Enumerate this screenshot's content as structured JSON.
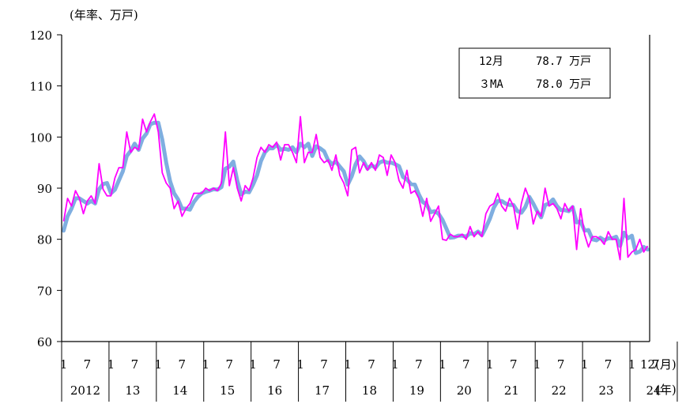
{
  "chart_data": {
    "type": "line",
    "ylabel_unit": "(年率、万戸)",
    "ylim": [
      60,
      120
    ],
    "yticks": [
      "60",
      "70",
      "80",
      "90",
      "100",
      "110",
      "120"
    ],
    "month_ticks": [
      "1",
      "7",
      "1",
      "7",
      "1",
      "7",
      "1",
      "7",
      "1",
      "7",
      "1",
      "7",
      "1",
      "7",
      "1",
      "7",
      "1",
      "7",
      "1",
      "7",
      "1",
      "7",
      "1",
      "7",
      "1",
      "7",
      "12"
    ],
    "year_labels": [
      "2012",
      "13",
      "14",
      "15",
      "16",
      "17",
      "18",
      "19",
      "20",
      "21",
      "22",
      "23",
      "24"
    ],
    "x_unit_month": "(月)",
    "x_unit_year": "(年)",
    "legend": {
      "row1_label": "12月",
      "row1_value": "78.7 万戸",
      "row2_label": "３MA",
      "row2_value": "78.0 万戸"
    },
    "colors": {
      "monthly": "#FF00FF",
      "ma3": "#7FAEE0",
      "axis": "#000000"
    },
    "series": [
      {
        "name": "12月",
        "values": [
          83.5,
          88.0,
          86.5,
          89.5,
          88.0,
          85.0,
          87.5,
          88.5,
          87.0,
          94.8,
          89.8,
          88.5,
          88.5,
          92.0,
          94.0,
          94.0,
          101.0,
          97.0,
          98.0,
          97.5,
          103.5,
          101.0,
          103.0,
          104.5,
          101.0,
          93.0,
          91.0,
          90.0,
          86.0,
          87.5,
          84.5,
          86.0,
          87.0,
          89.0,
          89.0,
          89.0,
          90.0,
          89.5,
          90.0,
          89.5,
          91.0,
          101.0,
          90.5,
          94.0,
          90.0,
          87.5,
          90.5,
          89.5,
          92.0,
          96.0,
          98.0,
          97.0,
          98.5,
          98.0,
          99.0,
          95.5,
          98.5,
          98.5,
          97.0,
          95.0,
          104.0,
          95.0,
          97.0,
          97.0,
          100.5,
          96.0,
          95.0,
          95.5,
          93.5,
          96.5,
          92.5,
          91.0,
          88.5,
          97.5,
          98.0,
          93.0,
          95.0,
          93.5,
          95.0,
          93.5,
          96.5,
          96.0,
          92.5,
          96.5,
          95.0,
          91.5,
          90.0,
          93.5,
          89.0,
          89.5,
          88.0,
          84.5,
          88.0,
          83.5,
          85.0,
          86.5,
          80.0,
          79.8,
          81.0,
          80.5,
          80.5,
          81.0,
          80.0,
          82.5,
          80.5,
          81.5,
          80.5,
          85.0,
          86.5,
          87.0,
          89.0,
          86.5,
          85.5,
          88.0,
          86.5,
          82.0,
          87.0,
          90.0,
          88.0,
          83.0,
          85.5,
          84.5,
          90.0,
          86.5,
          87.0,
          86.0,
          84.0,
          87.0,
          85.5,
          86.5,
          78.0,
          86.0,
          81.0,
          78.5,
          80.5,
          80.5,
          80.0,
          79.0,
          81.5,
          80.0,
          80.0,
          76.0,
          88.0,
          76.5,
          77.5,
          78.0,
          80.0,
          77.5,
          78.7
        ]
      },
      {
        "name": "３MA",
        "values": [
          81.7,
          84.5,
          86.0,
          88.0,
          88.0,
          87.5,
          87.0,
          87.5,
          87.0,
          89.8,
          90.8,
          91.0,
          89.0,
          89.7,
          91.5,
          93.3,
          96.3,
          97.3,
          98.7,
          97.5,
          99.7,
          100.7,
          102.5,
          102.8,
          102.8,
          99.5,
          95.0,
          91.3,
          89.0,
          87.8,
          86.0,
          86.0,
          85.8,
          87.3,
          88.3,
          89.0,
          89.3,
          89.5,
          89.8,
          89.7,
          90.2,
          93.8,
          94.2,
          95.2,
          91.5,
          88.8,
          89.3,
          89.2,
          90.7,
          92.5,
          95.3,
          97.0,
          97.8,
          97.8,
          98.5,
          97.5,
          97.7,
          97.5,
          98.0,
          97.0,
          98.7,
          98.0,
          98.7,
          96.3,
          98.2,
          97.8,
          97.2,
          95.5,
          94.7,
          95.2,
          94.2,
          93.3,
          90.7,
          92.3,
          94.7,
          96.2,
          95.3,
          93.8,
          94.5,
          94.0,
          95.0,
          95.3,
          95.0,
          95.0,
          94.7,
          94.3,
          92.2,
          91.7,
          90.8,
          90.7,
          88.8,
          87.3,
          86.8,
          85.3,
          85.5,
          85.0,
          83.8,
          82.1,
          80.3,
          80.4,
          80.7,
          80.7,
          80.5,
          81.2,
          81.0,
          81.5,
          80.8,
          82.3,
          84.0,
          86.2,
          87.5,
          87.5,
          87.0,
          86.7,
          86.7,
          85.5,
          85.2,
          86.3,
          88.3,
          87.0,
          85.5,
          84.3,
          86.7,
          87.0,
          87.8,
          86.5,
          85.7,
          85.7,
          85.5,
          86.3,
          83.3,
          83.5,
          81.7,
          81.8,
          80.0,
          79.8,
          80.3,
          79.8,
          80.2,
          80.2,
          80.5,
          78.7,
          81.3,
          80.2,
          80.7,
          77.3,
          77.6,
          78.5,
          78.0
        ]
      }
    ]
  }
}
